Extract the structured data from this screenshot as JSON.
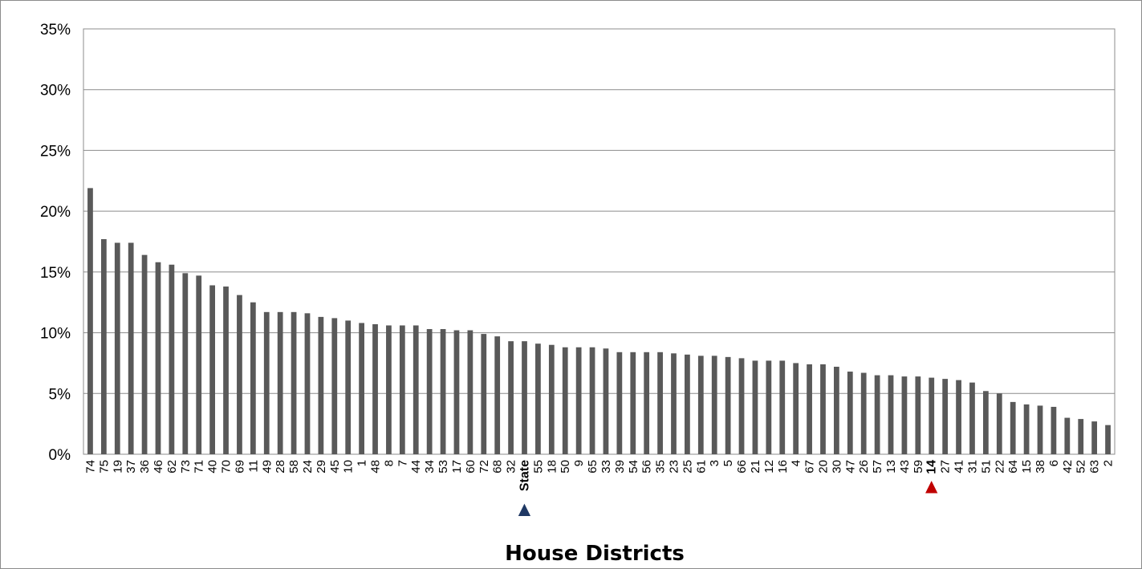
{
  "chart_data": {
    "type": "bar",
    "title": "",
    "xlabel": "House Districts",
    "ylabel": "",
    "ylim": [
      0,
      35
    ],
    "y_ticks": [
      "0%",
      "5%",
      "10%",
      "15%",
      "20%",
      "25%",
      "30%",
      "35%"
    ],
    "y_tick_values": [
      0,
      5,
      10,
      15,
      20,
      25,
      30,
      35
    ],
    "grid": true,
    "bar_color": "#595959",
    "categories": [
      "74",
      "75",
      "19",
      "37",
      "36",
      "46",
      "62",
      "73",
      "71",
      "40",
      "70",
      "69",
      "11",
      "49",
      "28",
      "58",
      "24",
      "29",
      "45",
      "10",
      "1",
      "48",
      "8",
      "7",
      "44",
      "34",
      "53",
      "17",
      "60",
      "72",
      "68",
      "32",
      "State",
      "55",
      "18",
      "50",
      "9",
      "65",
      "33",
      "39",
      "54",
      "56",
      "35",
      "23",
      "25",
      "61",
      "3",
      "5",
      "66",
      "21",
      "12",
      "16",
      "4",
      "67",
      "20",
      "30",
      "47",
      "26",
      "57",
      "13",
      "43",
      "59",
      "14",
      "27",
      "41",
      "31",
      "51",
      "22",
      "64",
      "15",
      "38",
      "6",
      "42",
      "52",
      "63",
      "2"
    ],
    "values": [
      21.9,
      17.7,
      17.4,
      17.4,
      16.4,
      15.8,
      15.6,
      14.9,
      14.7,
      13.9,
      13.8,
      13.1,
      12.5,
      11.7,
      11.7,
      11.7,
      11.6,
      11.3,
      11.2,
      11.0,
      10.8,
      10.7,
      10.6,
      10.6,
      10.6,
      10.3,
      10.3,
      10.2,
      10.2,
      9.9,
      9.7,
      9.3,
      9.3,
      9.1,
      9.0,
      8.8,
      8.8,
      8.8,
      8.7,
      8.4,
      8.4,
      8.4,
      8.4,
      8.3,
      8.2,
      8.1,
      8.1,
      8.0,
      7.9,
      7.7,
      7.7,
      7.7,
      7.5,
      7.4,
      7.4,
      7.2,
      6.8,
      6.7,
      6.5,
      6.5,
      6.4,
      6.4,
      6.3,
      6.2,
      6.1,
      5.9,
      5.2,
      5.0,
      4.3,
      4.1,
      4.0,
      3.9,
      3.0,
      2.9,
      2.7,
      2.4
    ],
    "highlights": [
      {
        "category": "State",
        "color": "#1f3864",
        "marker": "▲"
      },
      {
        "category": "14",
        "color": "#c00000",
        "marker": "▲"
      }
    ]
  }
}
